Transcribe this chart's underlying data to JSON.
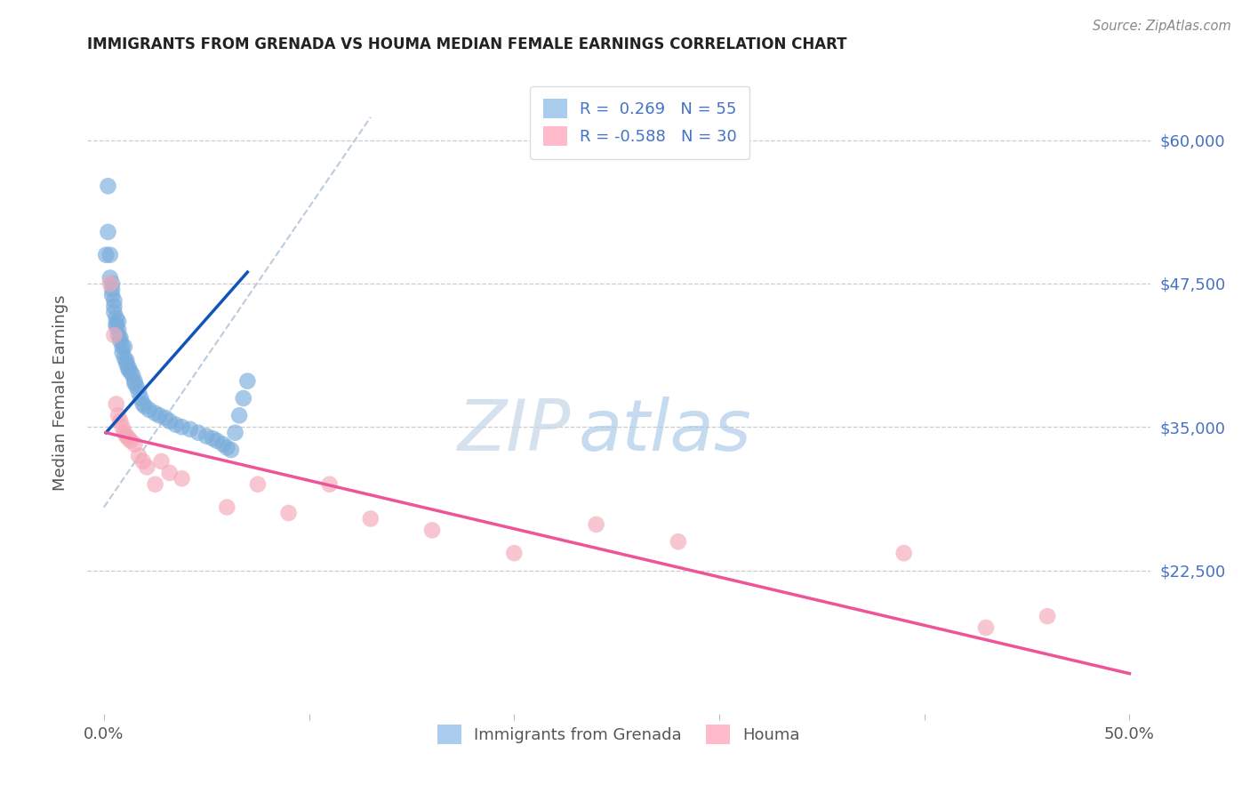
{
  "title": "IMMIGRANTS FROM GRENADA VS HOUMA MEDIAN FEMALE EARNINGS CORRELATION CHART",
  "source": "Source: ZipAtlas.com",
  "ylabel": "Median Female Earnings",
  "blue_color": "#7AADDB",
  "pink_color": "#F5A8B8",
  "blue_line_color": "#1155BB",
  "pink_line_color": "#EE5599",
  "ref_line_color": "#BBCCDD",
  "background_color": "#FFFFFF",
  "legend_label_1": "R =  0.269   N = 55",
  "legend_label_2": "R = -0.588   N = 30",
  "bottom_legend_1": "Immigrants from Grenada",
  "bottom_legend_2": "Houma",
  "grenada_x": [
    0.001,
    0.002,
    0.002,
    0.003,
    0.003,
    0.004,
    0.004,
    0.004,
    0.005,
    0.005,
    0.005,
    0.006,
    0.006,
    0.006,
    0.007,
    0.007,
    0.007,
    0.008,
    0.008,
    0.009,
    0.009,
    0.01,
    0.01,
    0.011,
    0.011,
    0.012,
    0.012,
    0.013,
    0.014,
    0.015,
    0.015,
    0.016,
    0.017,
    0.018,
    0.019,
    0.02,
    0.022,
    0.025,
    0.027,
    0.03,
    0.032,
    0.035,
    0.038,
    0.042,
    0.046,
    0.05,
    0.053,
    0.055,
    0.058,
    0.06,
    0.062,
    0.064,
    0.066,
    0.068,
    0.07
  ],
  "grenada_y": [
    50000,
    56000,
    52000,
    50000,
    48000,
    47500,
    47000,
    46500,
    46000,
    45500,
    45000,
    44500,
    44000,
    43800,
    44200,
    43500,
    43000,
    42800,
    42500,
    42000,
    41500,
    42000,
    41000,
    40800,
    40500,
    40200,
    40000,
    39800,
    39500,
    39000,
    38800,
    38500,
    38000,
    37500,
    37000,
    36800,
    36500,
    36200,
    36000,
    35800,
    35500,
    35200,
    35000,
    34800,
    34500,
    34200,
    34000,
    33800,
    33500,
    33200,
    33000,
    34500,
    36000,
    37500,
    39000
  ],
  "houma_x": [
    0.003,
    0.005,
    0.006,
    0.007,
    0.008,
    0.009,
    0.01,
    0.011,
    0.012,
    0.013,
    0.015,
    0.017,
    0.019,
    0.021,
    0.025,
    0.028,
    0.032,
    0.038,
    0.06,
    0.075,
    0.09,
    0.11,
    0.13,
    0.16,
    0.2,
    0.24,
    0.28,
    0.39,
    0.43,
    0.46
  ],
  "houma_y": [
    47500,
    43000,
    37000,
    36000,
    35500,
    35000,
    34500,
    34200,
    34000,
    33800,
    33500,
    32500,
    32000,
    31500,
    30000,
    32000,
    31000,
    30500,
    28000,
    30000,
    27500,
    30000,
    27000,
    26000,
    24000,
    26500,
    25000,
    24000,
    17500,
    18500
  ],
  "xlim": [
    -0.008,
    0.51
  ],
  "ylim": [
    10000,
    66000
  ],
  "ytick_positions": [
    22500,
    35000,
    47500,
    60000
  ],
  "ytick_labels": [
    "$22,500",
    "$35,000",
    "$47,500",
    "$60,000"
  ],
  "xtick_positions": [
    0.0,
    0.1,
    0.2,
    0.3,
    0.4,
    0.5
  ],
  "xtick_labels": [
    "0.0%",
    "",
    "",
    "",
    "",
    "50.0%"
  ],
  "blue_line_x": [
    0.001,
    0.07
  ],
  "blue_line_y": [
    34500,
    48500
  ],
  "pink_line_x": [
    0.001,
    0.5
  ],
  "pink_line_y": [
    34500,
    13500
  ],
  "ref_line_x": [
    0.0,
    0.13
  ],
  "ref_line_y": [
    28000,
    62000
  ]
}
